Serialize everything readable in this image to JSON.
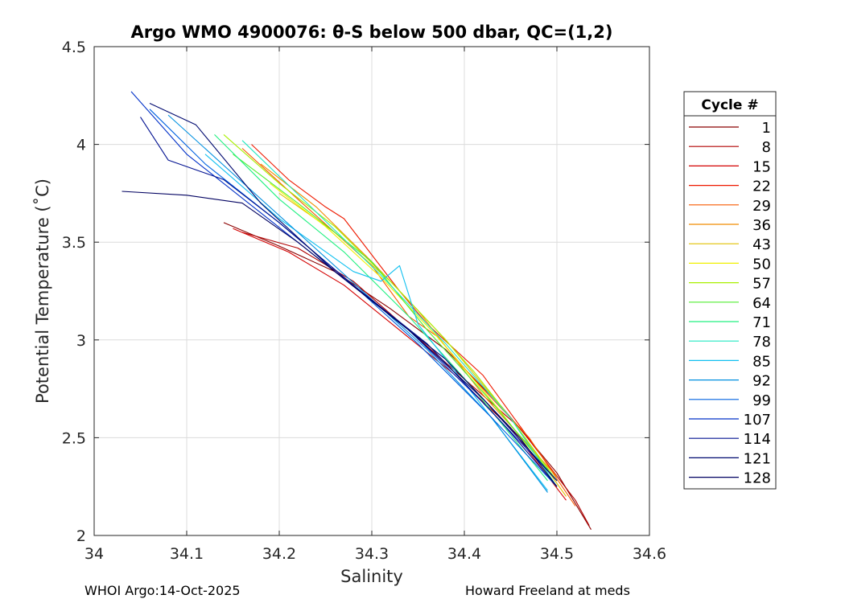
{
  "chart_data": {
    "type": "line",
    "title": "Argo WMO 4900076: θ-S below 500 dbar,  QC=(1,2)",
    "xlabel": "Salinity",
    "ylabel": "Potential Temperature (˚C)",
    "xlim": [
      34.0,
      34.6
    ],
    "ylim": [
      2.0,
      4.5
    ],
    "xticks": [
      "34",
      "34.1",
      "34.2",
      "34.3",
      "34.4",
      "34.5",
      "34.6"
    ],
    "yticks": [
      "2",
      "2.5",
      "3",
      "3.5",
      "4",
      "4.5"
    ],
    "grid": true,
    "legend": {
      "title": "Cycle #",
      "position": "right",
      "entries": [
        {
          "label": "1",
          "color": "#8b0000"
        },
        {
          "label": "8",
          "color": "#b00000"
        },
        {
          "label": "15",
          "color": "#d40000"
        },
        {
          "label": "22",
          "color": "#ee1a00"
        },
        {
          "label": "29",
          "color": "#f75a00"
        },
        {
          "label": "36",
          "color": "#f08c00"
        },
        {
          "label": "43",
          "color": "#e0c000"
        },
        {
          "label": "50",
          "color": "#f0f000"
        },
        {
          "label": "57",
          "color": "#a8f000"
        },
        {
          "label": "64",
          "color": "#50ee30"
        },
        {
          "label": "71",
          "color": "#20f080"
        },
        {
          "label": "78",
          "color": "#20e8c0"
        },
        {
          "label": "85",
          "color": "#10c0f0"
        },
        {
          "label": "92",
          "color": "#0090e0"
        },
        {
          "label": "99",
          "color": "#0060e0"
        },
        {
          "label": "107",
          "color": "#0030c8"
        },
        {
          "label": "114",
          "color": "#001090"
        },
        {
          "label": "121",
          "color": "#000a70"
        },
        {
          "label": "128",
          "color": "#000060"
        }
      ]
    },
    "series": [
      {
        "name": "1",
        "x": [
          34.14,
          34.2,
          34.26,
          34.32,
          34.38,
          34.44,
          34.5,
          34.537
        ],
        "y": [
          3.6,
          3.48,
          3.35,
          3.16,
          2.95,
          2.66,
          2.32,
          2.03
        ]
      },
      {
        "name": "8",
        "x": [
          34.16,
          34.22,
          34.28,
          34.34,
          34.4,
          34.46,
          34.52,
          34.535
        ],
        "y": [
          3.55,
          3.47,
          3.3,
          3.05,
          2.8,
          2.55,
          2.18,
          2.05
        ]
      },
      {
        "name": "15",
        "x": [
          34.15,
          34.21,
          34.27,
          34.33,
          34.39,
          34.45,
          34.51
        ],
        "y": [
          3.57,
          3.45,
          3.28,
          3.05,
          2.82,
          2.55,
          2.18
        ]
      },
      {
        "name": "22",
        "x": [
          34.17,
          34.21,
          34.25,
          34.27,
          34.33,
          34.36,
          34.42,
          34.5
        ],
        "y": [
          4.0,
          3.82,
          3.68,
          3.62,
          3.25,
          3.08,
          2.82,
          2.3
        ]
      },
      {
        "name": "29",
        "x": [
          34.16,
          34.22,
          34.3,
          34.34,
          34.37,
          34.41,
          34.47,
          34.52
        ],
        "y": [
          3.98,
          3.72,
          3.38,
          3.12,
          3.02,
          2.8,
          2.5,
          2.15
        ]
      },
      {
        "name": "36",
        "x": [
          34.18,
          34.24,
          34.3,
          34.35,
          34.42,
          34.5
        ],
        "y": [
          3.9,
          3.68,
          3.4,
          3.15,
          2.72,
          2.3
        ]
      },
      {
        "name": "43",
        "x": [
          34.2,
          34.26,
          34.32,
          34.38,
          34.45,
          34.51
        ],
        "y": [
          3.75,
          3.55,
          3.3,
          3.0,
          2.6,
          2.2
        ]
      },
      {
        "name": "50",
        "x": [
          34.19,
          34.25,
          34.31,
          34.37,
          34.44,
          34.5
        ],
        "y": [
          3.8,
          3.58,
          3.32,
          3.02,
          2.63,
          2.25
        ]
      },
      {
        "name": "57",
        "x": [
          34.14,
          34.2,
          34.26,
          34.32,
          34.37,
          34.41,
          34.45,
          34.5
        ],
        "y": [
          4.05,
          3.8,
          3.58,
          3.3,
          3.05,
          2.84,
          2.6,
          2.28
        ]
      },
      {
        "name": "64",
        "x": [
          34.15,
          34.22,
          34.3,
          34.36,
          34.43,
          34.5
        ],
        "y": [
          3.95,
          3.7,
          3.4,
          3.05,
          2.68,
          2.28
        ]
      },
      {
        "name": "71",
        "x": [
          34.13,
          34.2,
          34.27,
          34.34,
          34.41,
          34.49
        ],
        "y": [
          4.05,
          3.72,
          3.45,
          3.12,
          2.75,
          2.28
        ]
      },
      {
        "name": "78",
        "x": [
          34.16,
          34.23,
          34.31,
          34.38,
          34.45,
          34.5
        ],
        "y": [
          4.02,
          3.7,
          3.33,
          2.98,
          2.6,
          2.25
        ]
      },
      {
        "name": "85",
        "x": [
          34.12,
          34.2,
          34.28,
          34.31,
          34.33,
          34.35,
          34.41,
          34.49
        ],
        "y": [
          3.95,
          3.62,
          3.35,
          3.3,
          3.38,
          3.08,
          2.72,
          2.23
        ]
      },
      {
        "name": "92",
        "x": [
          34.08,
          34.15,
          34.22,
          34.29,
          34.36,
          34.43,
          34.49
        ],
        "y": [
          4.15,
          3.85,
          3.55,
          3.25,
          2.95,
          2.6,
          2.22
        ]
      },
      {
        "name": "99",
        "x": [
          34.06,
          34.12,
          34.2,
          34.28,
          34.35,
          34.43,
          34.5
        ],
        "y": [
          4.18,
          3.9,
          3.6,
          3.28,
          2.98,
          2.6,
          2.25
        ]
      },
      {
        "name": "107",
        "x": [
          34.04,
          34.1,
          34.18,
          34.26,
          34.34,
          34.42,
          34.5
        ],
        "y": [
          4.27,
          3.95,
          3.65,
          3.35,
          3.05,
          2.68,
          2.28
        ]
      },
      {
        "name": "114",
        "x": [
          34.05,
          34.08,
          34.14,
          34.2,
          34.28,
          34.36,
          34.44,
          34.5
        ],
        "y": [
          4.14,
          3.92,
          3.82,
          3.6,
          3.28,
          2.98,
          2.58,
          2.25
        ]
      },
      {
        "name": "121",
        "x": [
          34.06,
          34.11,
          34.18,
          34.26,
          34.34,
          34.42,
          34.5
        ],
        "y": [
          4.21,
          4.1,
          3.7,
          3.35,
          3.05,
          2.7,
          2.28
        ]
      },
      {
        "name": "128",
        "x": [
          34.03,
          34.1,
          34.16,
          34.22,
          34.3,
          34.38,
          34.46,
          34.5
        ],
        "y": [
          3.76,
          3.74,
          3.7,
          3.5,
          3.2,
          2.9,
          2.5,
          2.25
        ]
      }
    ]
  },
  "footer": {
    "left": "WHOI Argo:14-Oct-2025",
    "right": "Howard Freeland at meds"
  }
}
